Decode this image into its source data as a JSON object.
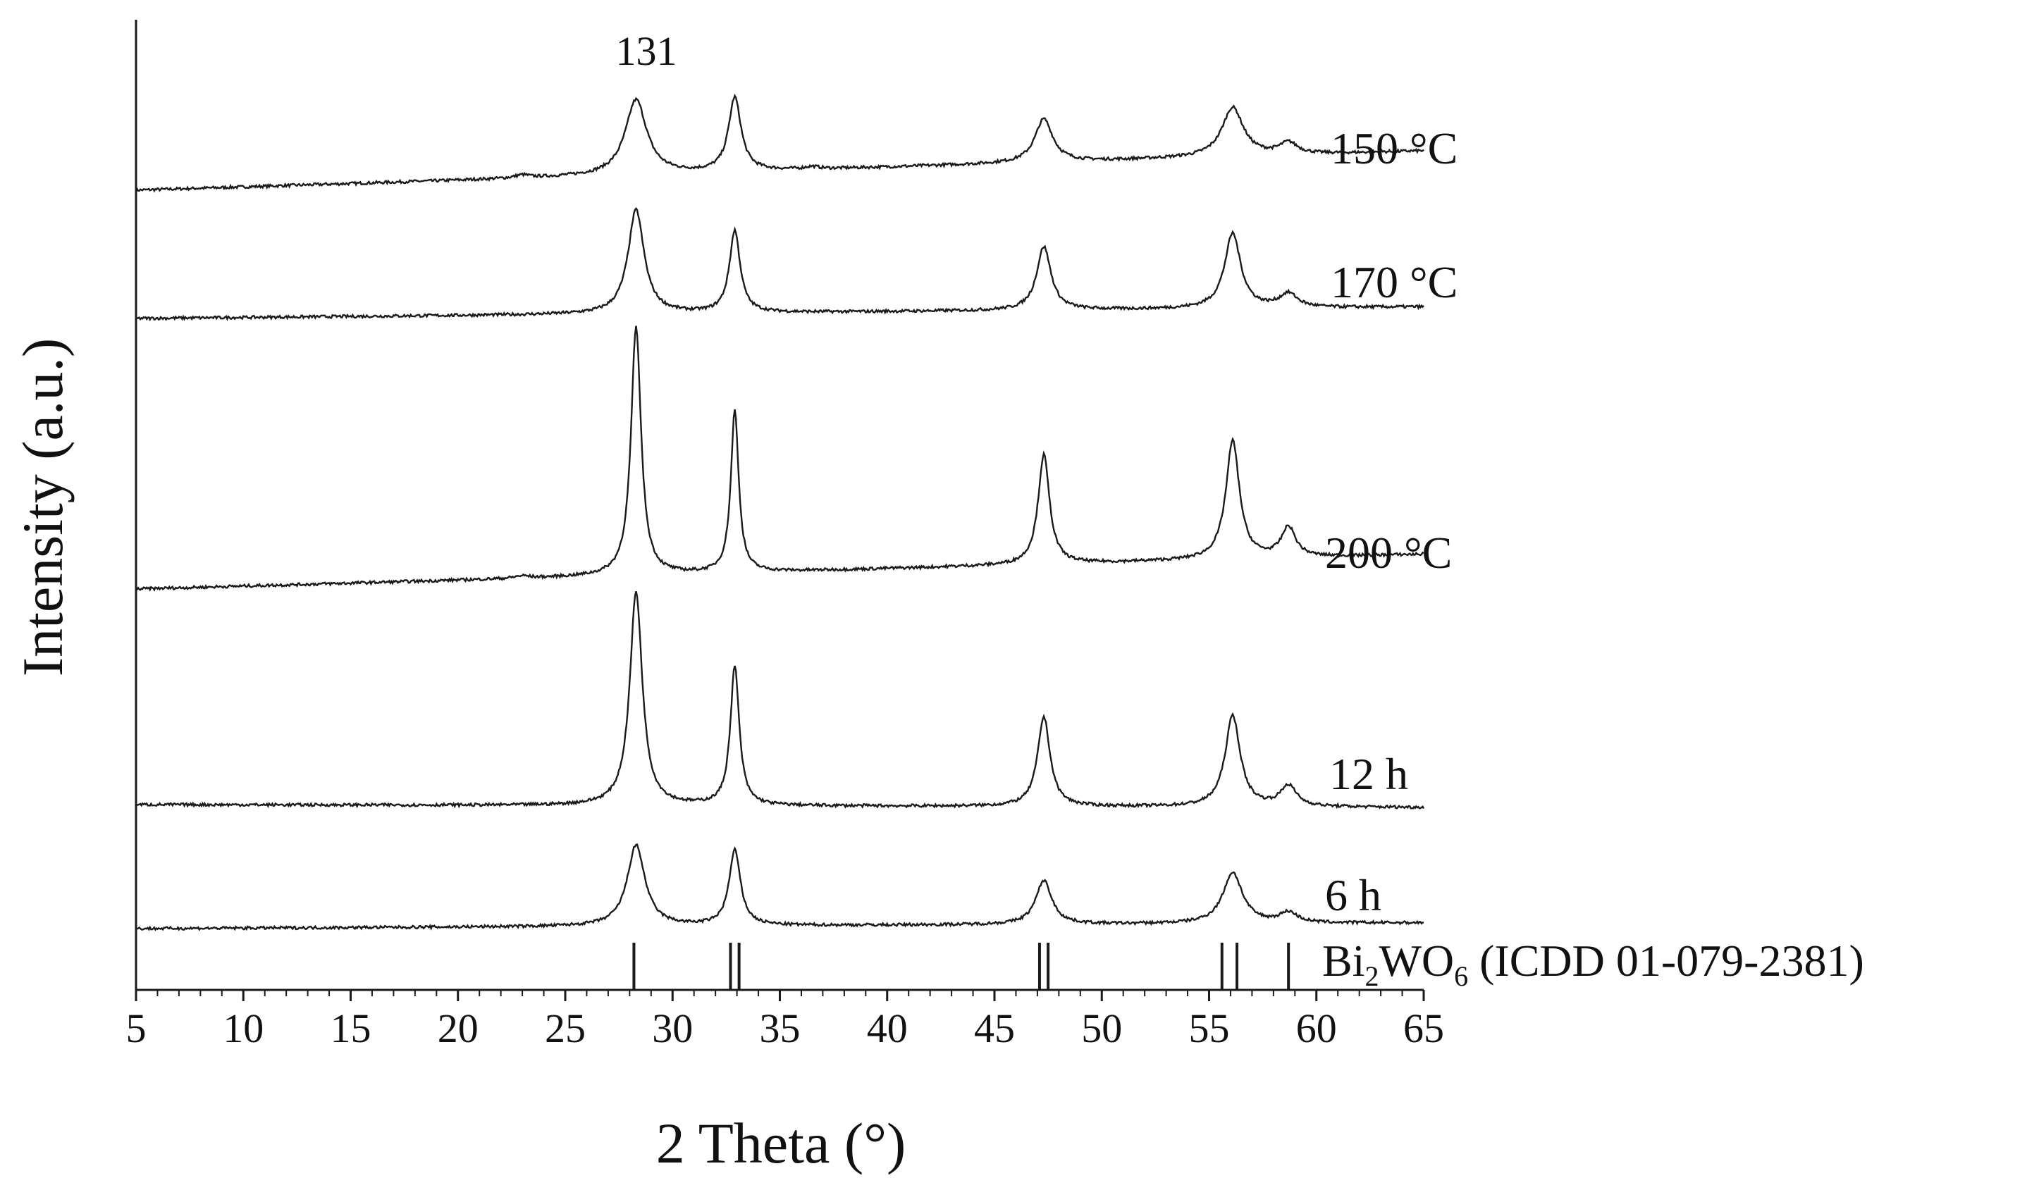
{
  "chart_data": {
    "type": "line",
    "title": "",
    "xlabel": "2 Theta (°)",
    "ylabel": "Intensity (a.u.)",
    "xlim": [
      5,
      65
    ],
    "x_ticks": [
      "5",
      "10",
      "15",
      "20",
      "25",
      "30",
      "35",
      "40",
      "45",
      "50",
      "55",
      "60",
      "65"
    ],
    "y_ticks": [],
    "grid": false,
    "legend": "labels at right end of each curve",
    "line_color": "#1a1a1a",
    "peak_annotation": {
      "text": "131",
      "x": 28.3
    },
    "series": [
      {
        "name": "150 °C",
        "baseline": [
          1.62,
          2.3
        ],
        "peaks": [
          {
            "x": 23.0,
            "h": 0.05,
            "w": 0.4
          },
          {
            "x": 28.3,
            "h": 1.3,
            "w": 0.6
          },
          {
            "x": 32.9,
            "h": 1.28,
            "w": 0.35
          },
          {
            "x": 36.5,
            "h": 0.04,
            "w": 0.4
          },
          {
            "x": 47.3,
            "h": 0.75,
            "w": 0.5
          },
          {
            "x": 56.1,
            "h": 0.85,
            "w": 0.6
          },
          {
            "x": 58.7,
            "h": 0.2,
            "w": 0.5
          }
        ]
      },
      {
        "name": "170 °C",
        "baseline": [
          2.1,
          2.3
        ],
        "peaks": [
          {
            "x": 28.3,
            "h": 1.8,
            "w": 0.45
          },
          {
            "x": 32.9,
            "h": 1.42,
            "w": 0.3
          },
          {
            "x": 47.3,
            "h": 1.1,
            "w": 0.4
          },
          {
            "x": 56.1,
            "h": 1.3,
            "w": 0.45
          },
          {
            "x": 58.7,
            "h": 0.24,
            "w": 0.5
          }
        ]
      },
      {
        "name": "200 °C",
        "baseline": [
          2.95,
          3.55
        ],
        "peaks": [
          {
            "x": 23.0,
            "h": 0.04,
            "w": 0.4
          },
          {
            "x": 28.3,
            "h": 4.3,
            "w": 0.28
          },
          {
            "x": 32.9,
            "h": 2.8,
            "w": 0.22
          },
          {
            "x": 47.3,
            "h": 1.9,
            "w": 0.32
          },
          {
            "x": 56.1,
            "h": 2.05,
            "w": 0.38
          },
          {
            "x": 58.7,
            "h": 0.52,
            "w": 0.4
          }
        ]
      },
      {
        "name": "12 h",
        "baseline": [
          2.15,
          2.1
        ],
        "peaks": [
          {
            "x": 28.3,
            "h": 3.7,
            "w": 0.35
          },
          {
            "x": 32.9,
            "h": 2.4,
            "w": 0.25
          },
          {
            "x": 47.3,
            "h": 1.55,
            "w": 0.35
          },
          {
            "x": 56.1,
            "h": 1.58,
            "w": 0.42
          },
          {
            "x": 58.7,
            "h": 0.36,
            "w": 0.45
          }
        ]
      },
      {
        "name": "6 h",
        "baseline": [
          1.25,
          1.35
        ],
        "peaks": [
          {
            "x": 28.3,
            "h": 1.4,
            "w": 0.5
          },
          {
            "x": 32.9,
            "h": 1.3,
            "w": 0.32
          },
          {
            "x": 47.3,
            "h": 0.76,
            "w": 0.45
          },
          {
            "x": 56.1,
            "h": 0.88,
            "w": 0.55
          },
          {
            "x": 58.7,
            "h": 0.18,
            "w": 0.5
          }
        ]
      }
    ],
    "reference": {
      "label_main": "Bi",
      "label_sub1": "2",
      "label_mid": "WO",
      "label_sub2": "6",
      "label_tail": " (ICDD 01-079-2381)",
      "positions": [
        28.2,
        32.7,
        33.1,
        47.1,
        47.5,
        55.6,
        56.3,
        58.7
      ]
    }
  }
}
